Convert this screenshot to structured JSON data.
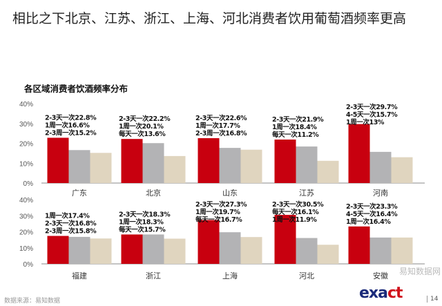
{
  "title": "相比之下北京、江苏、浙江、上海、河北消费者饮用葡萄酒频率更高",
  "subtitle": "各区域消费者饮酒频率分布",
  "footer": "数据来源：易知数据",
  "page_number": "14",
  "watermark": "易知数据网",
  "logo": {
    "part1": "exa",
    "part2": "ct"
  },
  "colors": {
    "bar1": "#c8000f",
    "bar2": "#b3b3b5",
    "bar3": "#e0d5bf"
  },
  "chart_data": [
    {
      "type": "bar",
      "ylim": [
        0,
        40
      ],
      "yticks": [
        "0%",
        "10%",
        "20%",
        "30%",
        "40%"
      ],
      "categories": [
        "广东",
        "北京",
        "山东",
        "江苏",
        "河南"
      ],
      "groups": [
        [
          {
            "label": "2-3天一次22.8%",
            "value": 22.8
          },
          {
            "label": "1周一次16.6%",
            "value": 16.6
          },
          {
            "label": "2-3周一次15.2%",
            "value": 15.2
          }
        ],
        [
          {
            "label": "2-3天一次22.2%",
            "value": 22.2
          },
          {
            "label": "1周一次20.1%",
            "value": 20.1
          },
          {
            "label": "每天一次13.6%",
            "value": 13.6
          }
        ],
        [
          {
            "label": "2-3天一次22.6%",
            "value": 22.6
          },
          {
            "label": "1周一次17.7%",
            "value": 17.7
          },
          {
            "label": "2-3周一次16.8%",
            "value": 16.8
          }
        ],
        [
          {
            "label": "2-3天一次21.9%",
            "value": 21.9
          },
          {
            "label": "1周一次18.4%",
            "value": 18.4
          },
          {
            "label": "每天一次11.2%",
            "value": 11.2
          }
        ],
        [
          {
            "label": "2-3天一次29.7%",
            "value": 29.7
          },
          {
            "label": "4-5天一次15.7%",
            "value": 15.7
          },
          {
            "label": "1周一次13%",
            "value": 13
          }
        ]
      ]
    },
    {
      "type": "bar",
      "ylim": [
        0,
        40
      ],
      "yticks": [
        "0%",
        "10%",
        "20%",
        "30%",
        "40%"
      ],
      "categories": [
        "福建",
        "浙江",
        "上海",
        "河北",
        "安徽"
      ],
      "groups": [
        [
          {
            "label": "1周一次17.4%",
            "value": 17.4
          },
          {
            "label": "2-3天一次16.8%",
            "value": 16.8
          },
          {
            "label": "2-3周一次15.8%",
            "value": 15.8
          }
        ],
        [
          {
            "label": "2-3天一次18.3%",
            "value": 18.3
          },
          {
            "label": "1周一次18.3%",
            "value": 18.3
          },
          {
            "label": "每天一次15.7%",
            "value": 15.7
          }
        ],
        [
          {
            "label": "2-3天一次27.3%",
            "value": 27.3
          },
          {
            "label": "1周一次19.7%",
            "value": 19.7
          },
          {
            "label": "每天一次16.7%",
            "value": 16.7
          }
        ],
        [
          {
            "label": "2-3天一次30.5%",
            "value": 30.5
          },
          {
            "label": "每天一次16.1%",
            "value": 16.1
          },
          {
            "label": "1周一次11.9%",
            "value": 11.9
          }
        ],
        [
          {
            "label": "2-3天一次23.3%",
            "value": 23.3
          },
          {
            "label": "4-5天一次16.4%",
            "value": 16.4
          },
          {
            "label": "1周一次16.4%",
            "value": 16.4
          }
        ]
      ]
    }
  ]
}
